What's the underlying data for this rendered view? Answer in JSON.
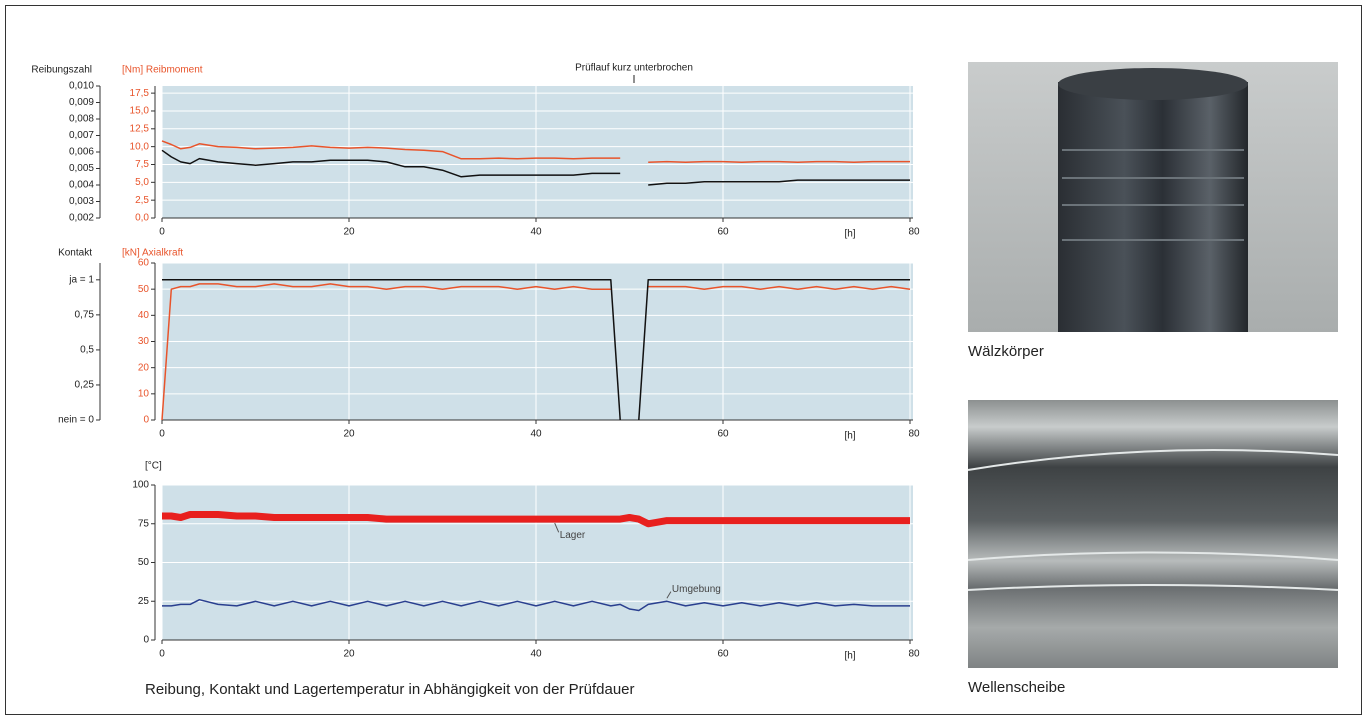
{
  "chart_data": [
    {
      "type": "line",
      "annotation": "Prüflauf kurz unterbrochen",
      "ylabel": "Reibungszahl",
      "y2label": "[Nm] Reibmoment",
      "xlabel": "[h]",
      "x": [
        0,
        1,
        2,
        3,
        4,
        6,
        8,
        10,
        12,
        14,
        16,
        18,
        20,
        22,
        24,
        26,
        28,
        30,
        32,
        34,
        36,
        38,
        40,
        42,
        44,
        46,
        48,
        49,
        50,
        51,
        52,
        54,
        56,
        58,
        60,
        62,
        64,
        66,
        68,
        70,
        72,
        74,
        76,
        78,
        80
      ],
      "xlim": [
        0,
        80
      ],
      "xticks": [
        0,
        20,
        40,
        60,
        80
      ],
      "grid": true,
      "ylim": [
        0.002,
        0.01
      ],
      "yticks": [
        {
          "value": 0.002,
          "label": "0,002"
        },
        {
          "value": 0.003,
          "label": "0,003"
        },
        {
          "value": 0.004,
          "label": "0,004"
        },
        {
          "value": 0.005,
          "label": "0,005"
        },
        {
          "value": 0.006,
          "label": "0,006"
        },
        {
          "value": 0.007,
          "label": "0,007"
        },
        {
          "value": 0.008,
          "label": "0,008"
        },
        {
          "value": 0.009,
          "label": "0,009"
        },
        {
          "value": 0.01,
          "label": "0,010"
        }
      ],
      "y2lim": [
        0,
        18.5
      ],
      "y2ticks": [
        {
          "value": 0,
          "label": "0,0"
        },
        {
          "value": 2.5,
          "label": "2,5"
        },
        {
          "value": 5,
          "label": "5,0"
        },
        {
          "value": 7.5,
          "label": "7,5"
        },
        {
          "value": 10,
          "label": "10,0"
        },
        {
          "value": 12.5,
          "label": "12,5"
        },
        {
          "value": 15,
          "label": "15,0"
        },
        {
          "value": 17.5,
          "label": "17,5"
        }
      ],
      "series": [
        {
          "color": "#e8542b",
          "axis": "y2",
          "values": [
            10.8,
            10.3,
            9.7,
            9.9,
            10.4,
            10.0,
            9.9,
            9.7,
            9.8,
            9.9,
            10.1,
            9.9,
            9.8,
            9.9,
            9.8,
            9.6,
            9.5,
            9.3,
            8.3,
            8.3,
            8.4,
            8.3,
            8.4,
            8.4,
            8.3,
            8.4,
            8.4,
            8.4,
            null,
            null,
            7.8,
            7.9,
            7.8,
            7.9,
            7.9,
            7.8,
            7.9,
            7.9,
            7.8,
            7.9,
            7.9,
            7.8,
            7.9,
            7.9,
            7.9
          ]
        },
        {
          "color": "#111111",
          "values": [
            0.0061,
            0.0057,
            0.0054,
            0.0053,
            0.0056,
            0.0054,
            0.0053,
            0.0052,
            0.0053,
            0.0054,
            0.0054,
            0.0055,
            0.0055,
            0.0055,
            0.0054,
            0.0051,
            0.0051,
            0.0049,
            0.0045,
            0.0046,
            0.0046,
            0.0046,
            0.0046,
            0.0046,
            0.0046,
            0.0047,
            0.0047,
            0.0047,
            null,
            null,
            0.004,
            0.0041,
            0.0041,
            0.0042,
            0.0042,
            0.0042,
            0.0042,
            0.0042,
            0.0043,
            0.0043,
            0.0043,
            0.0043,
            0.0043,
            0.0043,
            0.0043
          ]
        }
      ]
    },
    {
      "type": "line",
      "ylabel": "Kontakt",
      "y2label": "[kN] Axialkraft",
      "xlabel": "[h]",
      "x": [
        0,
        1,
        2,
        3,
        4,
        6,
        8,
        10,
        12,
        14,
        16,
        18,
        20,
        22,
        24,
        26,
        28,
        30,
        32,
        34,
        36,
        38,
        40,
        42,
        44,
        46,
        48,
        49,
        50,
        51,
        52,
        54,
        56,
        58,
        60,
        62,
        64,
        66,
        68,
        70,
        72,
        74,
        76,
        78,
        80
      ],
      "xlim": [
        0,
        80
      ],
      "xticks": [
        0,
        20,
        40,
        60,
        80
      ],
      "grid": true,
      "ylim": [
        0,
        1.12
      ],
      "yticks": [
        {
          "value": 0,
          "label": "nein = 0"
        },
        {
          "value": 0.25,
          "label": "0,25"
        },
        {
          "value": 0.5,
          "label": "0,5"
        },
        {
          "value": 0.75,
          "label": "0,75"
        },
        {
          "value": 1,
          "label": "ja = 1"
        }
      ],
      "y2lim": [
        0,
        60
      ],
      "y2ticks": [
        0,
        10,
        20,
        30,
        40,
        50,
        60
      ],
      "series": [
        {
          "color": "#e8542b",
          "axis": "y2",
          "values": [
            0,
            50,
            51,
            51,
            52,
            52,
            51,
            51,
            52,
            51,
            51,
            52,
            51,
            51,
            50,
            51,
            51,
            50,
            51,
            51,
            51,
            50,
            51,
            50,
            51,
            50,
            50,
            null,
            null,
            null,
            51,
            51,
            51,
            50,
            51,
            51,
            50,
            51,
            50,
            51,
            50,
            51,
            50,
            51,
            50
          ]
        },
        {
          "color": "#111111",
          "values": [
            1,
            1,
            1,
            1,
            1,
            1,
            1,
            1,
            1,
            1,
            1,
            1,
            1,
            1,
            1,
            1,
            1,
            1,
            1,
            1,
            1,
            1,
            1,
            1,
            1,
            1,
            1,
            0,
            null,
            0,
            1,
            1,
            1,
            1,
            1,
            1,
            1,
            1,
            1,
            1,
            1,
            1,
            1,
            1,
            1
          ]
        }
      ]
    },
    {
      "type": "line",
      "ylabel": "[°C]",
      "xlabel": "[h]",
      "x": [
        0,
        1,
        2,
        3,
        4,
        6,
        8,
        10,
        12,
        14,
        16,
        18,
        20,
        22,
        24,
        26,
        28,
        30,
        32,
        34,
        36,
        38,
        40,
        42,
        44,
        46,
        48,
        49,
        50,
        51,
        52,
        54,
        56,
        58,
        60,
        62,
        64,
        66,
        68,
        70,
        72,
        74,
        76,
        78,
        80
      ],
      "xlim": [
        0,
        80
      ],
      "xticks": [
        0,
        20,
        40,
        60,
        80
      ],
      "grid": true,
      "ylim": [
        0,
        100
      ],
      "yticks": [
        0,
        25,
        50,
        75,
        100
      ],
      "series": [
        {
          "label": "Lager",
          "color": "#e8201e",
          "values": [
            80,
            80,
            79,
            81,
            81,
            81,
            80,
            80,
            79,
            79,
            79,
            79,
            79,
            79,
            78,
            78,
            78,
            78,
            78,
            78,
            78,
            78,
            78,
            78,
            78,
            78,
            78,
            78,
            79,
            78,
            75,
            77,
            77,
            77,
            77,
            77,
            77,
            77,
            77,
            77,
            77,
            77,
            77,
            77,
            77
          ]
        },
        {
          "label": "Umgebung",
          "color": "#2a3f8f",
          "values": [
            22,
            22,
            23,
            23,
            26,
            23,
            22,
            25,
            22,
            25,
            22,
            25,
            22,
            25,
            22,
            25,
            22,
            25,
            22,
            25,
            22,
            25,
            22,
            25,
            22,
            25,
            22,
            23,
            20,
            19,
            23,
            25,
            22,
            24,
            22,
            24,
            22,
            24,
            22,
            24,
            22,
            23,
            22,
            22,
            22
          ]
        }
      ]
    }
  ],
  "caption": "Reibung, Kontakt und Lagertemperatur in Abhängigkeit von der Prüfdauer",
  "photos": [
    {
      "caption": "Wälzkörper"
    },
    {
      "caption": "Wellenscheibe"
    }
  ]
}
